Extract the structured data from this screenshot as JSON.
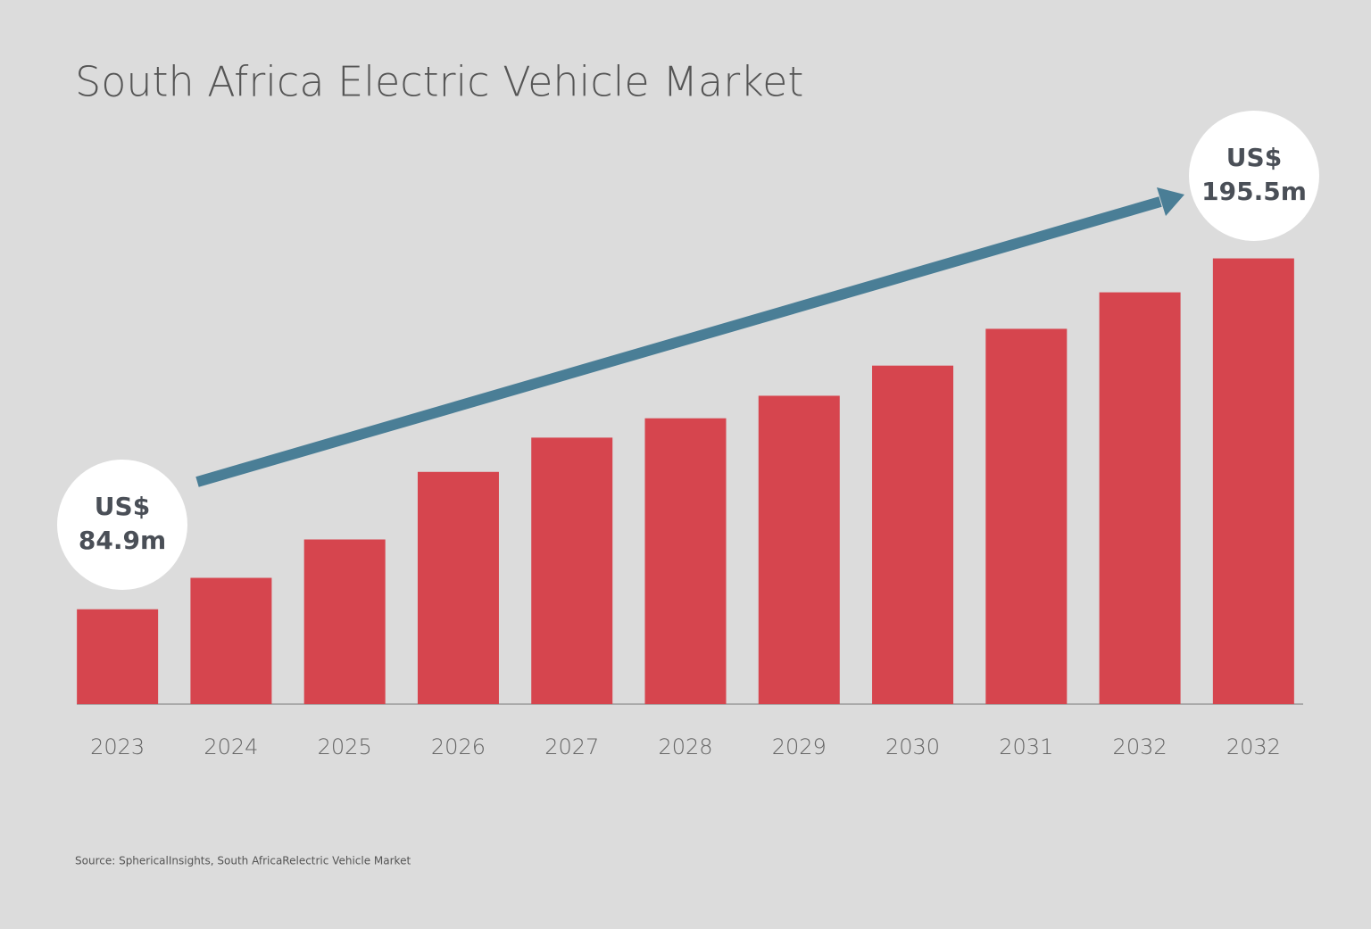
{
  "chart_data": {
    "type": "bar",
    "title": "South Africa Electric Vehicle Market",
    "categories": [
      "2023",
      "2024",
      "2025",
      "2026",
      "2027",
      "2028",
      "2029",
      "2030",
      "2031",
      "2032",
      "2032"
    ],
    "values": [
      84.9,
      94.8,
      106.9,
      128.2,
      139.0,
      145.1,
      152.2,
      161.7,
      173.3,
      184.8,
      195.5
    ],
    "value_labels": [
      "US$ 84.9m",
      null,
      null,
      null,
      null,
      null,
      null,
      null,
      null,
      null,
      "US$ 195.5m"
    ],
    "color": "#d6454e",
    "ylim": [
      55,
      210
    ],
    "source": "Source: SphericalInsights, South AfricaRelectric Vehicle Market"
  }
}
